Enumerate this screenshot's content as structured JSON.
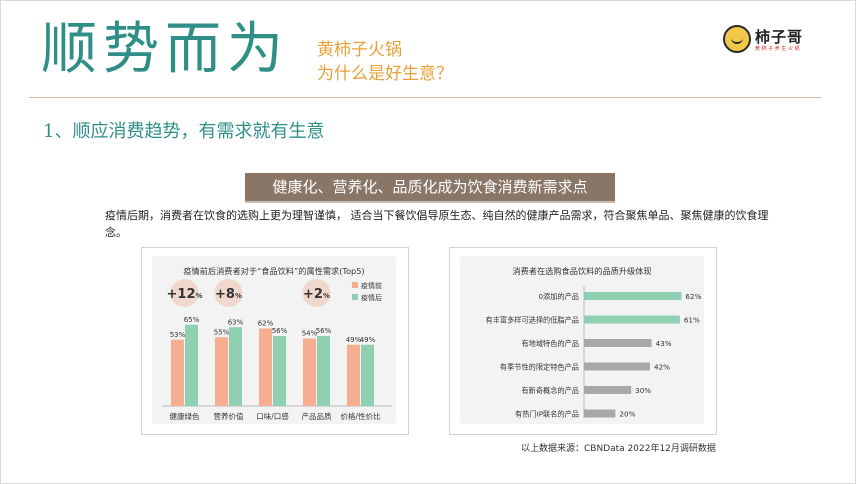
{
  "header": {
    "title": "顺势而为",
    "subtitle_line1": "黄柿子火锅",
    "subtitle_line2": "为什么是好生意？",
    "logo_name": "柿子哥",
    "logo_tagline": "黄 柿 子 养 生 火 锅"
  },
  "section_title": "1、顺应消费趋势，有需求就有生意",
  "banner": "健康化、营养化、品质化成为饮食消费新需求点",
  "paragraph": "疫情后期，消费者在饮食的选购上更为理智谨慎， 适合当下餐饮倡导原生态、纯自然的健康产品需求，符合聚焦单品、聚焦健康的饮食理念。",
  "source_note": "以上数据来源：CBNData 2022年12月调研数据",
  "colors": {
    "before": "#f7ad8f",
    "after": "#8fcfb2",
    "teal_bar": "#8fcfb2",
    "gray_bar": "#a8a8a8",
    "brand_teal": "#2f8f87",
    "brand_orange": "#e8a13a"
  },
  "chart_data": [
    {
      "type": "bar",
      "title": "疫情前后消费者对于“食品饮料”的属性需求(Top5)",
      "categories": [
        "健康绿色",
        "营养价值",
        "口味/口感",
        "产品品质",
        "价格/性价比"
      ],
      "series": [
        {
          "name": "疫情前",
          "values": [
            53,
            55,
            62,
            54,
            49
          ]
        },
        {
          "name": "疫情后",
          "values": [
            65,
            63,
            56,
            56,
            49
          ]
        }
      ],
      "value_suffix": "%",
      "callouts": [
        {
          "category": "健康绿色",
          "text": "+12",
          "unit": "%"
        },
        {
          "category": "营养价值",
          "text": "+8",
          "unit": "%"
        },
        {
          "category": "产品品质",
          "text": "+2",
          "unit": "%"
        }
      ],
      "ylim": [
        0,
        80
      ],
      "legend": "right"
    },
    {
      "type": "bar",
      "orientation": "horizontal",
      "title": "消费者在选购食品饮料的品质升级体现",
      "categories": [
        "0添加的产品",
        "有丰富多样可选择的低脂产品",
        "有地域特色的产品",
        "有季节性的限定特色产品",
        "有新奇概念的产品",
        "有热门IP联名的产品"
      ],
      "values": [
        62,
        61,
        43,
        42,
        30,
        20
      ],
      "value_suffix": "%",
      "xlim": [
        0,
        70
      ]
    }
  ]
}
